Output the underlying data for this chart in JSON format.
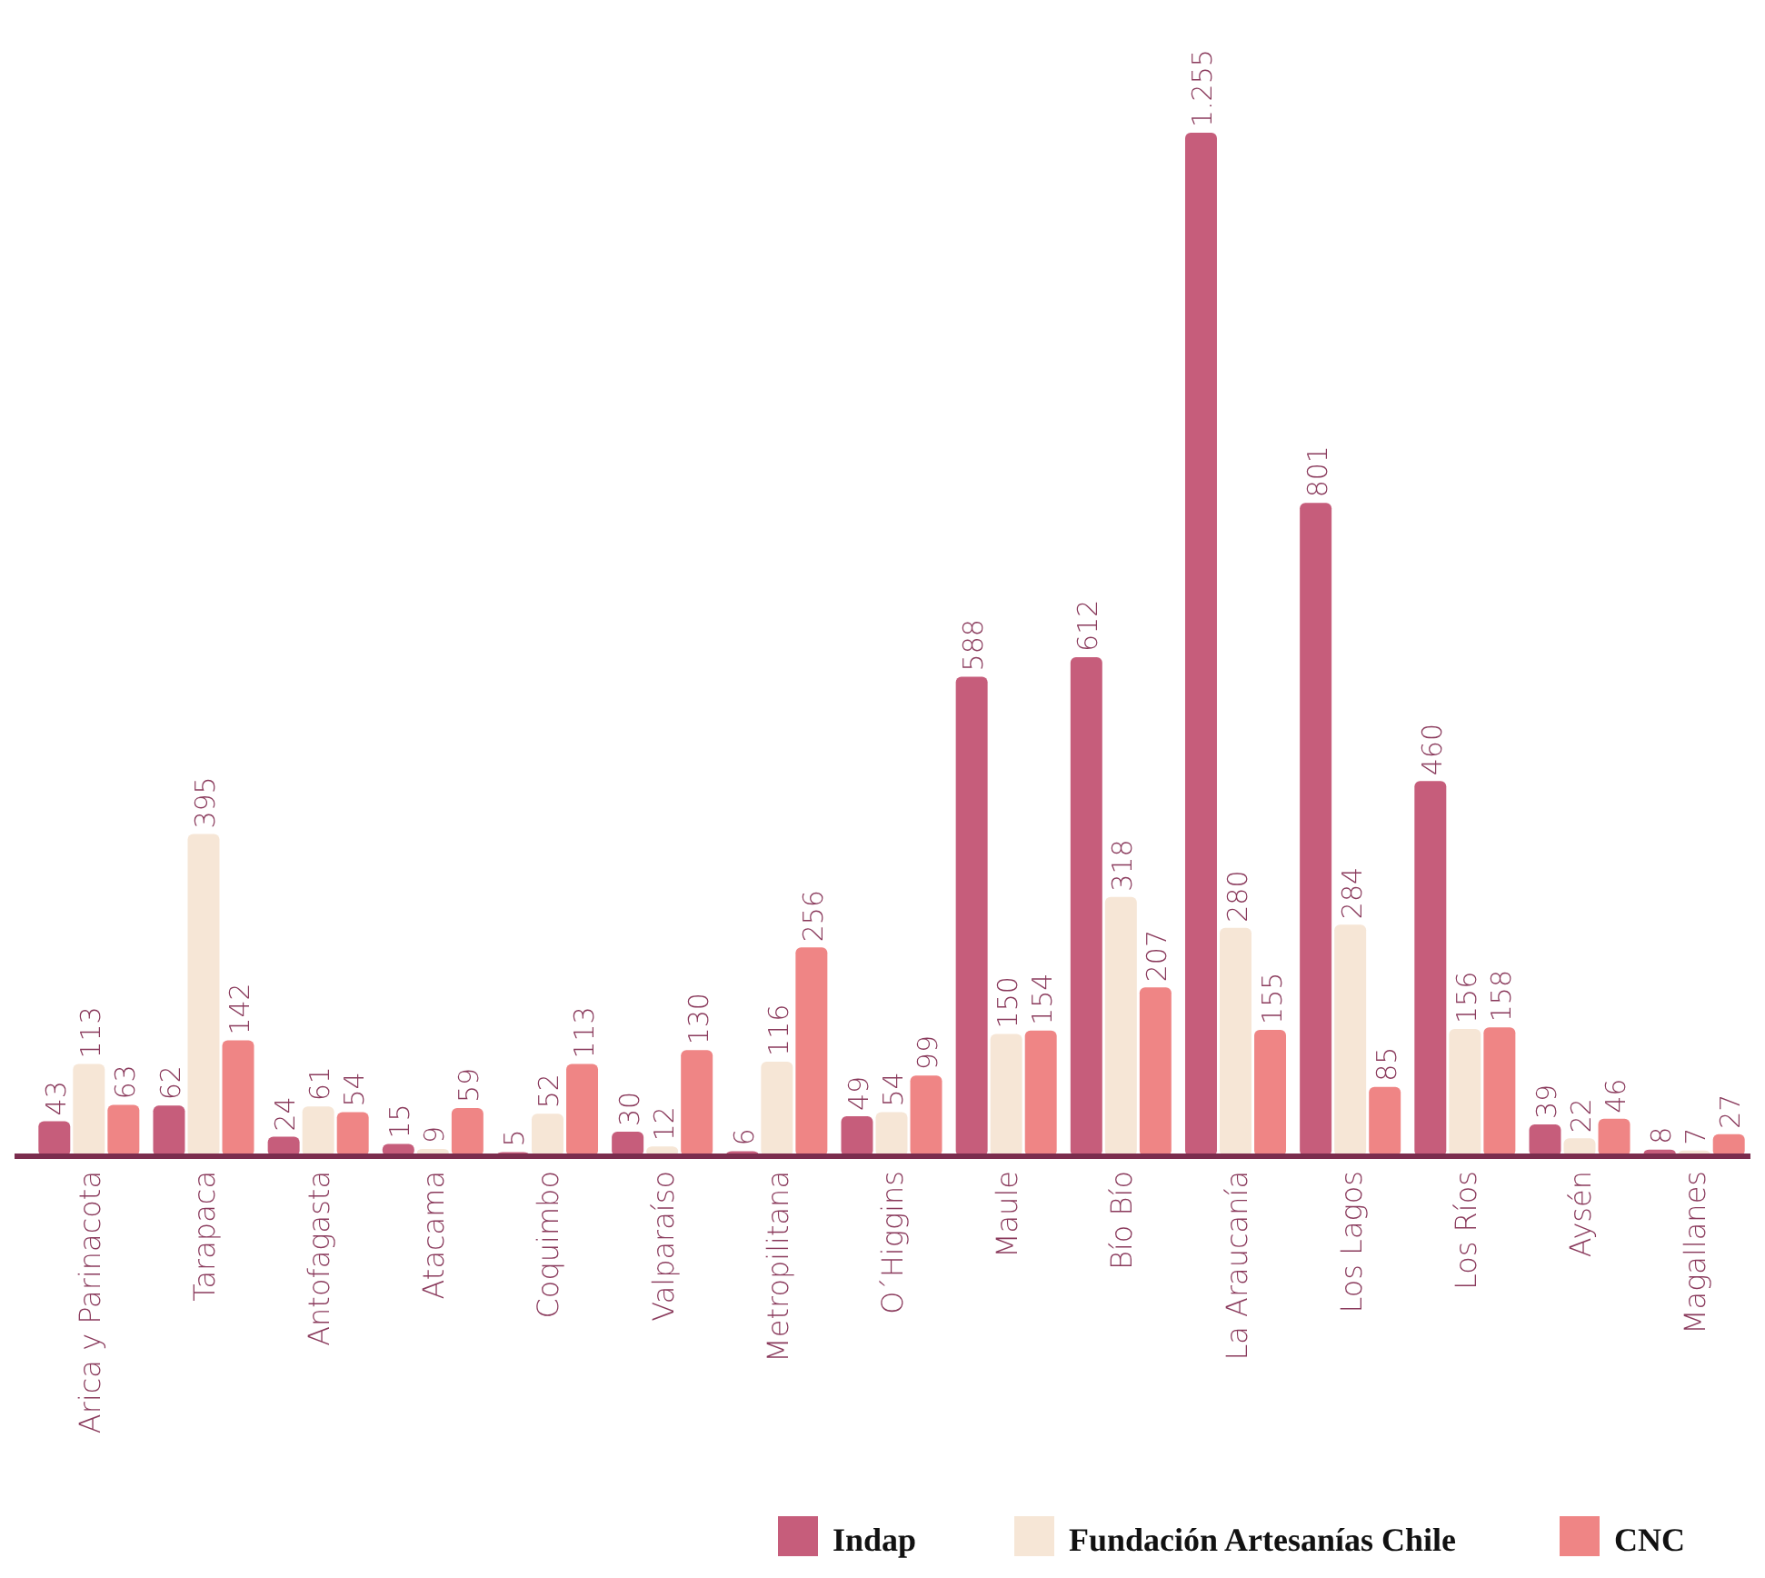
{
  "chart_data": {
    "type": "bar",
    "categories": [
      "Arica y Parinacota",
      "Tarapaca",
      "Antofagasta",
      "Atacama",
      "Coquimbo",
      "Valparaíso",
      "Metropilitana",
      "O´Higgins",
      "Maule",
      "Bío Bío",
      "La Araucanía",
      "Los Lagos",
      "Los Ríos",
      "Aysén",
      "Magallanes"
    ],
    "series": [
      {
        "name": "Indap",
        "color": "#c65d7b",
        "values": [
          43,
          62,
          24,
          15,
          5,
          30,
          6,
          49,
          588,
          612,
          1255,
          801,
          460,
          39,
          8
        ],
        "value_labels": [
          "43",
          "62",
          "24",
          "15",
          "5",
          "30",
          "6",
          "49",
          "588",
          "612",
          "1.255",
          "801",
          "460",
          "39",
          "8"
        ]
      },
      {
        "name": "Fundación Artesanías Chile",
        "color": "#f6e6d6",
        "values": [
          113,
          395,
          61,
          9,
          52,
          12,
          116,
          54,
          150,
          318,
          280,
          284,
          156,
          22,
          7
        ],
        "value_labels": [
          "113",
          "395",
          "61",
          "9",
          "52",
          "12",
          "116",
          "54",
          "150",
          "318",
          "280",
          "284",
          "156",
          "22",
          "7"
        ]
      },
      {
        "name": "CNC",
        "color": "#ef8585",
        "values": [
          63,
          142,
          54,
          59,
          113,
          130,
          256,
          99,
          154,
          207,
          155,
          85,
          158,
          46,
          27
        ],
        "value_labels": [
          "63",
          "142",
          "54",
          "59",
          "113",
          "130",
          "256",
          "99",
          "154",
          "207",
          "155",
          "85",
          "158",
          "46",
          "27"
        ]
      }
    ],
    "legend": "bottom",
    "grid": false
  }
}
